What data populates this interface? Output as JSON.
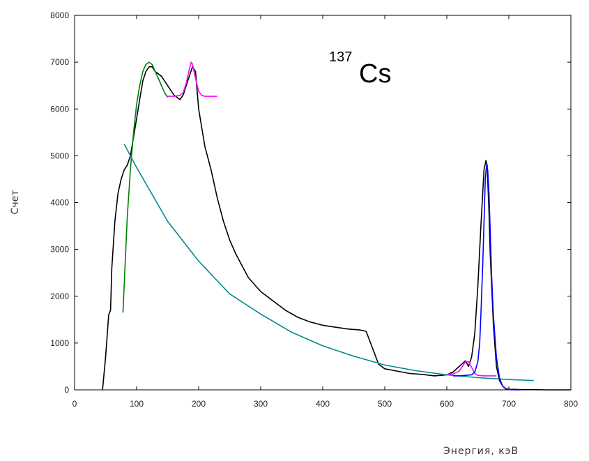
{
  "chart_data": {
    "type": "line",
    "title": "",
    "annotation": {
      "mass_number": "137",
      "element": "Cs"
    },
    "xlabel": "Энергия, кэВ",
    "ylabel": "Счет",
    "xlim": [
      0,
      800
    ],
    "ylim": [
      0,
      8000
    ],
    "x_ticks": [
      "0",
      "100",
      "200",
      "300",
      "400",
      "500",
      "600",
      "700",
      "800"
    ],
    "y_ticks": [
      "0",
      "1000",
      "2000",
      "3000",
      "4000",
      "5000",
      "6000",
      "7000",
      "8000"
    ],
    "grid": false,
    "legend": "none",
    "series": [
      {
        "color": "#000000",
        "x": [
          45,
          50,
          55,
          58,
          60,
          65,
          70,
          75,
          80,
          85,
          90,
          95,
          100,
          105,
          110,
          115,
          120,
          125,
          130,
          140,
          150,
          160,
          170,
          175,
          180,
          185,
          190,
          195,
          200,
          210,
          220,
          230,
          240,
          250,
          260,
          280,
          300,
          320,
          340,
          360,
          380,
          400,
          420,
          440,
          460,
          470,
          480,
          490,
          500,
          520,
          540,
          560,
          580,
          600,
          610,
          620,
          625,
          630,
          635,
          640,
          645,
          650,
          655,
          660,
          663,
          665,
          668,
          670,
          675,
          680,
          685,
          690,
          695,
          700,
          710,
          720,
          740,
          760,
          780,
          800
        ],
        "y": [
          0,
          700,
          1600,
          1700,
          2600,
          3600,
          4200,
          4500,
          4700,
          4800,
          5000,
          5400,
          5800,
          6200,
          6600,
          6800,
          6900,
          6900,
          6800,
          6700,
          6500,
          6300,
          6200,
          6300,
          6500,
          6700,
          6900,
          6800,
          6000,
          5200,
          4700,
          4100,
          3600,
          3200,
          2900,
          2400,
          2100,
          1900,
          1700,
          1550,
          1450,
          1380,
          1340,
          1300,
          1280,
          1250,
          900,
          550,
          450,
          400,
          350,
          330,
          300,
          320,
          380,
          500,
          560,
          620,
          500,
          700,
          1200,
          2200,
          3500,
          4700,
          4900,
          4800,
          3800,
          2900,
          1400,
          500,
          200,
          80,
          30,
          10,
          10,
          5,
          5,
          0,
          0,
          0
        ]
      },
      {
        "color": "#008000",
        "x": [
          78,
          85,
          90,
          95,
          100,
          105,
          110,
          115,
          120,
          125,
          130,
          135,
          140,
          145,
          150
        ],
        "y": [
          1650,
          3700,
          4700,
          5500,
          6100,
          6500,
          6800,
          6950,
          7000,
          6950,
          6800,
          6650,
          6500,
          6350,
          6250
        ]
      },
      {
        "color": "#ff00ff",
        "x": [
          150,
          160,
          170,
          175,
          180,
          185,
          188,
          190,
          195,
          200,
          205,
          210,
          220,
          230
        ],
        "y": [
          6270,
          6270,
          6290,
          6350,
          6550,
          6850,
          7000,
          6960,
          6650,
          6380,
          6290,
          6270,
          6270,
          6270
        ]
      },
      {
        "color": "#008b8b",
        "x": [
          80,
          100,
          150,
          200,
          250,
          300,
          350,
          400,
          450,
          500,
          550,
          600,
          650,
          700,
          740
        ],
        "y": [
          5250,
          4750,
          3600,
          2750,
          2050,
          1620,
          1230,
          940,
          720,
          530,
          410,
          320,
          260,
          220,
          200
        ]
      },
      {
        "color": "#ff00ff",
        "x": [
          600,
          610,
          620,
          625,
          630,
          635,
          640,
          645,
          650,
          660,
          670,
          680
        ],
        "y": [
          330,
          340,
          400,
          500,
          600,
          600,
          480,
          350,
          310,
          300,
          300,
          300
        ]
      },
      {
        "color": "#0000ff",
        "x": [
          610,
          620,
          630,
          640,
          645,
          650,
          653,
          655,
          658,
          660,
          662,
          664,
          666,
          668,
          670,
          672,
          675,
          680,
          685,
          690,
          695,
          700,
          710,
          720
        ],
        "y": [
          300,
          300,
          310,
          320,
          380,
          600,
          1000,
          1600,
          2700,
          3600,
          4500,
          4800,
          4700,
          4200,
          3400,
          2500,
          1600,
          700,
          250,
          80,
          20,
          5,
          0,
          0
        ]
      }
    ]
  }
}
